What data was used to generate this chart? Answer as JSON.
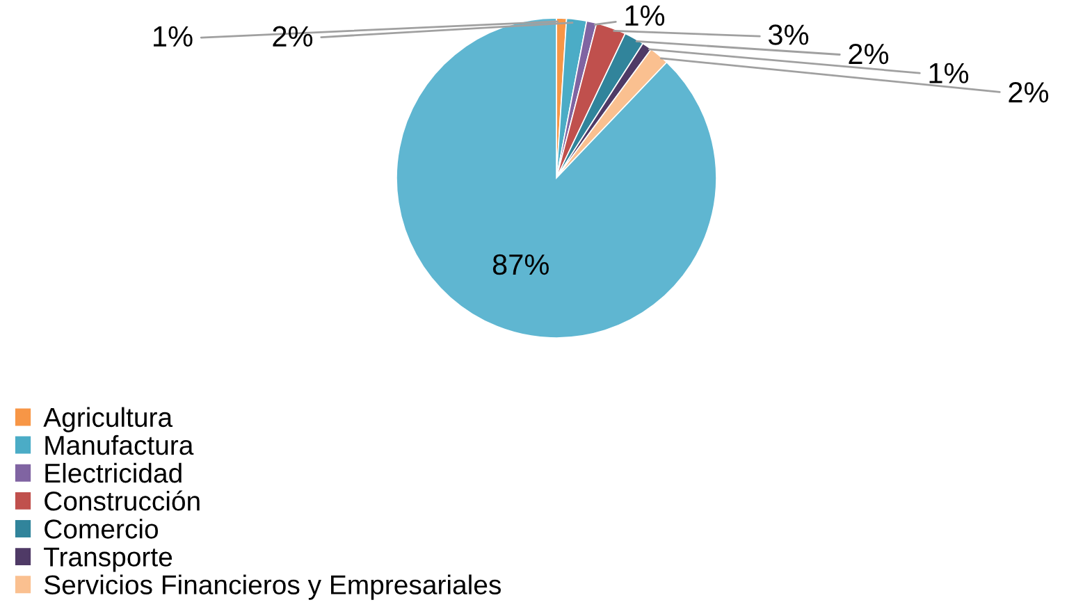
{
  "chart_data": {
    "type": "pie",
    "categories": [
      "Agricultura",
      "Manufactura",
      "Electricidad",
      "Construcción",
      "Comercio",
      "Transporte",
      "Servicios Financieros y Empresariales",
      null
    ],
    "values": [
      1,
      2,
      1,
      3,
      2,
      1,
      2,
      87
    ],
    "value_labels": [
      "1%",
      "2%",
      "1%",
      "3%",
      "2%",
      "1%",
      "2%",
      "87%"
    ],
    "colors": [
      "#f79646",
      "#4bacc6",
      "#8064a2",
      "#c0504d",
      "#31849b",
      "#4f3a66",
      "#fac090",
      "#5fb6d1"
    ],
    "legend": "bottom left"
  }
}
